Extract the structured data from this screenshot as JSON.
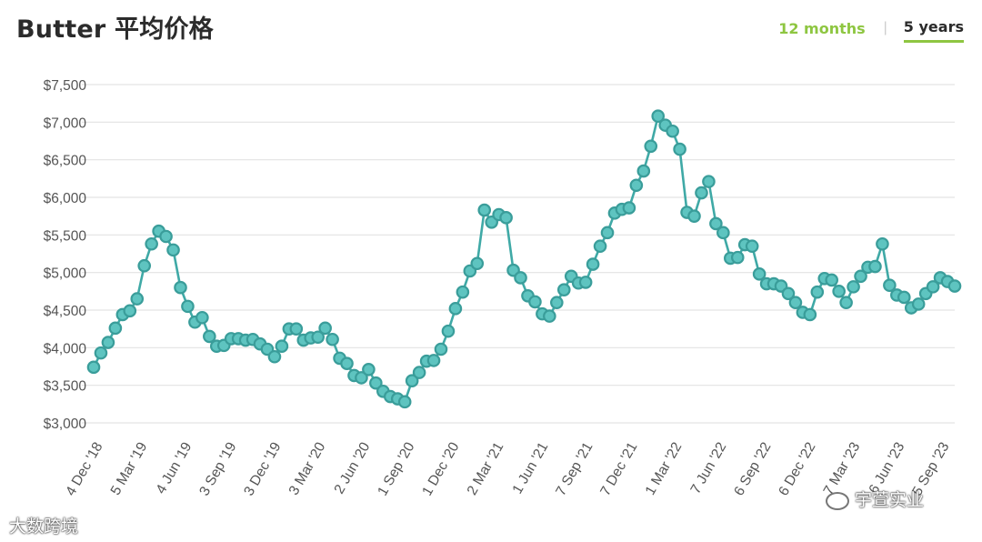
{
  "header": {
    "title": "Butter 平均价格",
    "tabs": [
      {
        "label": "12 months",
        "active": false
      },
      {
        "label": "5 years",
        "active": true
      }
    ]
  },
  "colors": {
    "line": "#3fa9a6",
    "marker_fill": "#5ec4c0",
    "marker_stroke": "#3a9d9a",
    "grid": "#e3e3e3",
    "tab_active_accent": "#8ec641"
  },
  "chart_data": {
    "type": "line",
    "title": "Butter 平均价格",
    "xlabel": "",
    "ylabel": "",
    "ylim": [
      3000,
      7500
    ],
    "grid": true,
    "y_ticks": [
      3000,
      3500,
      4000,
      4500,
      5000,
      5500,
      6000,
      6500,
      7000,
      7500
    ],
    "y_tick_labels": [
      "$3,000",
      "$3,500",
      "$4,000",
      "$4,500",
      "$5,000",
      "$5,500",
      "$6,000",
      "$6,500",
      "$7,000",
      "$7,500"
    ],
    "x_tick_labels": [
      "4 Dec '18",
      "5 Mar '19",
      "4 Jun '19",
      "3 Sep '19",
      "3 Dec '19",
      "3 Mar '20",
      "2 Jun '20",
      "1 Sep '20",
      "1 Dec '20",
      "2 Mar '21",
      "1 Jun '21",
      "7 Sep '21",
      "7 Dec '21",
      "1 Mar '22",
      "7 Jun '22",
      "6 Sep '22",
      "6 Dec '22",
      "7 Mar '23",
      "6 Jun '23",
      "5 Sep '23"
    ],
    "series": [
      {
        "name": "",
        "values": [
          3740,
          3930,
          4070,
          4260,
          4440,
          4490,
          4650,
          5090,
          5380,
          5550,
          5480,
          5300,
          4800,
          4550,
          4340,
          4400,
          4150,
          4020,
          4030,
          4120,
          4120,
          4100,
          4110,
          4050,
          3980,
          3880,
          4020,
          4250,
          4250,
          4100,
          4130,
          4140,
          4260,
          4110,
          3860,
          3790,
          3630,
          3600,
          3710,
          3530,
          3420,
          3350,
          3320,
          3280,
          3560,
          3670,
          3820,
          3830,
          3980,
          4220,
          4520,
          4740,
          5020,
          5120,
          5830,
          5670,
          5770,
          5730,
          5030,
          4930,
          4690,
          4610,
          4450,
          4420,
          4600,
          4770,
          4950,
          4860,
          4870,
          5110,
          5350,
          5530,
          5790,
          5840,
          5860,
          6160,
          6350,
          6680,
          7080,
          6960,
          6880,
          6640,
          5800,
          5750,
          6060,
          6210,
          5650,
          5530,
          5190,
          5200,
          5370,
          5350,
          4980,
          4850,
          4850,
          4820,
          4720,
          4600,
          4470,
          4440,
          4740,
          4920,
          4900,
          4750,
          4600,
          4810,
          4950,
          5070,
          5080,
          5380,
          4830,
          4700,
          4670,
          4530,
          4580,
          4720,
          4810,
          4930,
          4880,
          4820
        ]
      }
    ]
  },
  "watermarks": {
    "bottom_left": "大数跨境",
    "bottom_right": "宇萱实业"
  }
}
